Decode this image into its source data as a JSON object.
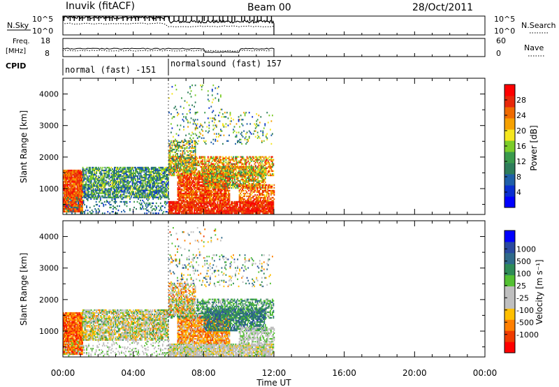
{
  "header": {
    "title": "Inuvik (fitACF)",
    "beam": "Beam 00",
    "date": "28/Oct/2011"
  },
  "sky_panel": {
    "left_label": "N.Sky",
    "right_label": "N.Search",
    "left_ticks": [
      "10^5",
      "10^0"
    ],
    "right_ticks": [
      "10^5",
      "10^0"
    ]
  },
  "freq_panel": {
    "left_label_line1": "Freq.",
    "left_label_line2": "[MHz]",
    "right_label": "Nave",
    "left_ticks": [
      "18",
      "8"
    ],
    "right_ticks": [
      "60",
      "0"
    ]
  },
  "cpid": {
    "label": "CPID",
    "mode1": "normal (fast) -151",
    "mode2": "normalsound (fast) 157"
  },
  "colors": {
    "power": [
      "#0000ff",
      "#0a2fd0",
      "#1f5fa8",
      "#2e7d5b",
      "#3a9a4c",
      "#7ccc2a",
      "#f5e61f",
      "#f6a100",
      "#ef6a00",
      "#e8280a",
      "#ff0000"
    ],
    "velocity": [
      "#ff0000",
      "#ef3b00",
      "#ff7f00",
      "#ffbf00",
      "#bfbfbf",
      "#bfbfbf",
      "#54c033",
      "#2e8b57",
      "#2f6a8a",
      "#2a49a0",
      "#0000ff"
    ]
  },
  "chart_data": [
    {
      "type": "heatmap",
      "name": "power",
      "ylabel": "Slant Range [km]",
      "ylim": [
        180,
        4500
      ],
      "y_ticks": [
        1000,
        2000,
        3000,
        4000
      ],
      "x_ticks": [
        "00:00",
        "04:00",
        "08:00",
        "12:00",
        "16:00",
        "20:00",
        "00:00"
      ],
      "xlim": [
        0,
        24
      ],
      "data_extent_hours": [
        0,
        12
      ],
      "colorbar": {
        "label": "Power [dB]",
        "ticks": [
          4,
          8,
          12,
          16,
          20,
          24,
          28
        ],
        "range": [
          0,
          32
        ]
      }
    },
    {
      "type": "heatmap",
      "name": "velocity",
      "ylabel": "Slant Range [km]",
      "ylim": [
        180,
        4500
      ],
      "y_ticks": [
        1000,
        2000,
        3000,
        4000
      ],
      "x_ticks": [
        "00:00",
        "04:00",
        "08:00",
        "12:00",
        "16:00",
        "20:00",
        "00:00"
      ],
      "xlim": [
        0,
        24
      ],
      "xlabel": "Time UT",
      "colorbar": {
        "label": "Velocity [m s⁻¹]",
        "ticks": [
          "1000",
          "500",
          "100",
          "25",
          "-25",
          "-100",
          "-500",
          "-1000"
        ]
      }
    }
  ]
}
